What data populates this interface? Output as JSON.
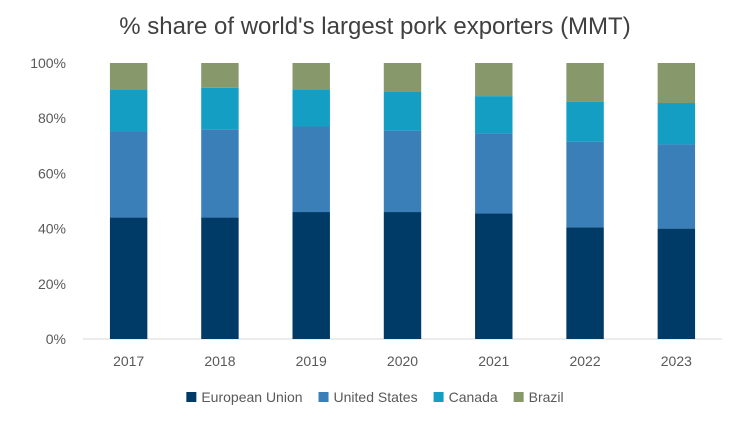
{
  "chart_data": {
    "type": "bar",
    "stacked": true,
    "title": "% share of world's largest pork exporters (MMT)",
    "xlabel": "",
    "ylabel": "",
    "categories": [
      "2017",
      "2018",
      "2019",
      "2020",
      "2021",
      "2022",
      "2023"
    ],
    "ylim": [
      0,
      100
    ],
    "yticks": [
      0,
      20,
      40,
      60,
      80,
      100
    ],
    "ytick_labels": [
      "0%",
      "20%",
      "40%",
      "60%",
      "80%",
      "100%"
    ],
    "grid": false,
    "legend_position": "bottom",
    "series": [
      {
        "name": "European Union",
        "color": "#003a66",
        "values": [
          44,
          44,
          46,
          46,
          45.5,
          40.5,
          40
        ]
      },
      {
        "name": "United States",
        "color": "#3b7fb8",
        "values": [
          31,
          32,
          31,
          29.5,
          29,
          31,
          30.5
        ]
      },
      {
        "name": "Canada",
        "color": "#159ec4",
        "values": [
          15.5,
          15,
          13.5,
          14,
          13.5,
          14.5,
          15
        ]
      },
      {
        "name": "Brazil",
        "color": "#87996b",
        "values": [
          9.5,
          9,
          9.5,
          10.5,
          12,
          14,
          14.5
        ]
      }
    ]
  }
}
